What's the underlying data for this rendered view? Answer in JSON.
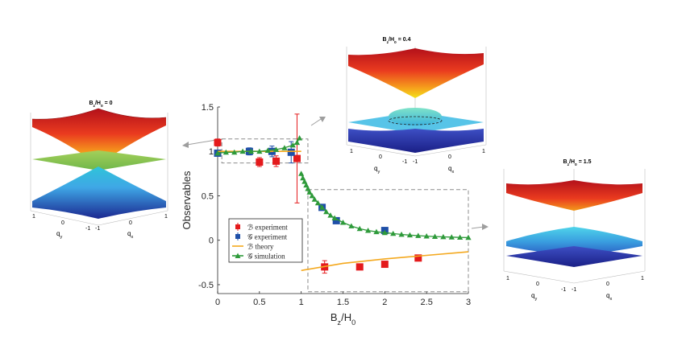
{
  "chart_data": {
    "type": "scatter",
    "xlabel": "B_z/H_0",
    "ylabel": "Observables",
    "xlim": [
      0,
      3
    ],
    "ylim": [
      -0.6,
      1.5
    ],
    "x_ticks": [
      0,
      0.5,
      1,
      1.5,
      2,
      2.5,
      3
    ],
    "x_tick_labels": [
      "0",
      "0.5",
      "1",
      "1.5",
      "2",
      "2.5",
      "3"
    ],
    "y_ticks": [
      -0.5,
      0,
      0.5,
      1,
      1.5
    ],
    "y_tick_labels": [
      "-0.5",
      "0",
      "0.5",
      "1",
      "1.5"
    ],
    "grid": false,
    "legend_position": "bottom-left",
    "series": [
      {
        "name": "ℬ experiment",
        "kind": "points",
        "color": "#e41a1c",
        "marker": "square",
        "points": [
          {
            "x": 0.0,
            "y": 1.1,
            "err": 0.04
          },
          {
            "x": 0.5,
            "y": 0.88,
            "err": 0.05
          },
          {
            "x": 0.7,
            "y": 0.89,
            "err": 0.06
          },
          {
            "x": 0.95,
            "y": 0.92,
            "err": 0.5
          },
          {
            "x": 1.28,
            "y": -0.3,
            "err": 0.07
          },
          {
            "x": 1.7,
            "y": -0.3,
            "err": 0.0
          },
          {
            "x": 2.0,
            "y": -0.27,
            "err": 0.0
          },
          {
            "x": 2.4,
            "y": -0.2,
            "err": 0.0
          }
        ]
      },
      {
        "name": "𝒢 experiment",
        "kind": "points",
        "color": "#1f4fa8",
        "marker": "square",
        "points": [
          {
            "x": 0.0,
            "y": 0.98,
            "err": 0.03
          },
          {
            "x": 0.38,
            "y": 1.0,
            "err": 0.04
          },
          {
            "x": 0.65,
            "y": 1.0,
            "err": 0.06
          },
          {
            "x": 0.88,
            "y": 0.99,
            "err": 0.12
          },
          {
            "x": 1.25,
            "y": 0.37,
            "err": 0.0
          },
          {
            "x": 1.42,
            "y": 0.22,
            "err": 0.0
          },
          {
            "x": 2.0,
            "y": 0.11,
            "err": 0.0
          }
        ]
      },
      {
        "name": "ℬ theory",
        "kind": "line",
        "color": "#f4a81d",
        "segments": [
          [
            [
              0,
              1.0
            ],
            [
              0.5,
              1.0
            ],
            [
              0.9,
              1.0
            ],
            [
              1.0,
              1.0
            ]
          ],
          [
            [
              1.0,
              -0.34
            ],
            [
              1.5,
              -0.26
            ],
            [
              2.0,
              -0.21
            ],
            [
              2.5,
              -0.17
            ],
            [
              3.0,
              -0.13
            ]
          ]
        ]
      },
      {
        "name": "𝒢 simulation",
        "kind": "line-marker",
        "color": "#2e9a3a",
        "marker": "triangle",
        "segments": [
          [
            [
              0.0,
              0.98
            ],
            [
              0.1,
              0.99
            ],
            [
              0.2,
              0.99
            ],
            [
              0.3,
              1.0
            ],
            [
              0.4,
              1.0
            ],
            [
              0.5,
              1.0
            ],
            [
              0.6,
              1.01
            ],
            [
              0.7,
              1.02
            ],
            [
              0.8,
              1.04
            ],
            [
              0.9,
              1.07
            ],
            [
              0.95,
              1.1
            ],
            [
              0.98,
              1.15
            ]
          ],
          [
            [
              1.0,
              0.75
            ],
            [
              1.02,
              0.7
            ],
            [
              1.04,
              0.66
            ],
            [
              1.06,
              0.62
            ],
            [
              1.08,
              0.58
            ],
            [
              1.1,
              0.54
            ],
            [
              1.13,
              0.5
            ],
            [
              1.16,
              0.46
            ],
            [
              1.2,
              0.42
            ],
            [
              1.25,
              0.37
            ],
            [
              1.3,
              0.32
            ],
            [
              1.35,
              0.28
            ],
            [
              1.4,
              0.25
            ],
            [
              1.5,
              0.2
            ],
            [
              1.6,
              0.16
            ],
            [
              1.7,
              0.13
            ],
            [
              1.8,
              0.11
            ],
            [
              1.9,
              0.095
            ],
            [
              2.0,
              0.085
            ],
            [
              2.1,
              0.075
            ],
            [
              2.2,
              0.065
            ],
            [
              2.3,
              0.058
            ],
            [
              2.4,
              0.052
            ],
            [
              2.5,
              0.046
            ],
            [
              2.6,
              0.042
            ],
            [
              2.7,
              0.038
            ],
            [
              2.8,
              0.035
            ],
            [
              2.9,
              0.032
            ],
            [
              3.0,
              0.03
            ]
          ]
        ]
      }
    ],
    "zoom_regions": [
      {
        "xlim": [
          0.05,
          1.08
        ],
        "ylim": [
          0.87,
          1.14
        ]
      },
      {
        "xlim": [
          1.08,
          3.0
        ],
        "ylim": [
          -0.58,
          0.57
        ]
      }
    ]
  },
  "insets": [
    {
      "id": "zero",
      "title": "B_z/H_0 = 0",
      "qy": "q_y",
      "qx": "q_x",
      "ticks_left": [
        "1",
        "0",
        "-1"
      ],
      "ticks_right": [
        "-1",
        "0",
        "1"
      ]
    },
    {
      "id": "mid",
      "title": "B_z/H_0 = 0.4",
      "qy": "q_y",
      "qx": "q_x",
      "ticks_left": [
        "1",
        "0",
        "-1"
      ],
      "ticks_right": [
        "-1",
        "0",
        "1"
      ]
    },
    {
      "id": "high",
      "title": "B_z/H_0 = 1.5",
      "qy": "q_y",
      "qx": "q_x",
      "ticks_left": [
        "1",
        "0",
        "-1"
      ],
      "ticks_right": [
        "-1",
        "0",
        "1"
      ]
    }
  ],
  "colors": {
    "red_band_top": "#c9151b",
    "red_band_bottom": "#f5d51e",
    "blue_band_top": "#3ec3e8",
    "blue_band_bottom": "#1d2b8f",
    "flat_band": "#8bc34a"
  }
}
